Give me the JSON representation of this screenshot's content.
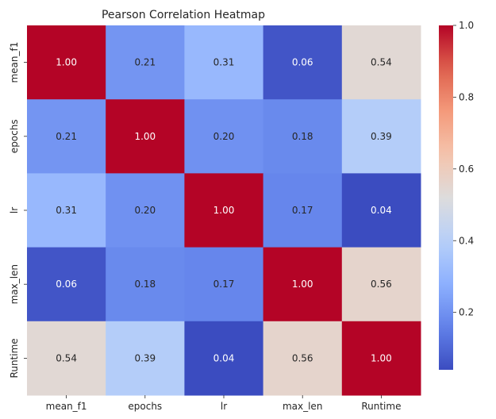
{
  "chart_data": {
    "type": "heatmap",
    "title": "Pearson Correlation Heatmap",
    "xlabel": "",
    "ylabel": "",
    "x_labels": [
      "mean_f1",
      "epochs",
      "lr",
      "max_len",
      "Runtime"
    ],
    "y_labels": [
      "mean_f1",
      "epochs",
      "lr",
      "max_len",
      "Runtime"
    ],
    "values": [
      [
        1.0,
        0.21,
        0.31,
        0.06,
        0.54
      ],
      [
        0.21,
        1.0,
        0.2,
        0.18,
        0.39
      ],
      [
        0.31,
        0.2,
        1.0,
        0.17,
        0.04
      ],
      [
        0.06,
        0.18,
        0.17,
        1.0,
        0.56
      ],
      [
        0.54,
        0.39,
        0.04,
        0.56,
        1.0
      ]
    ],
    "annotation_format": "0.00",
    "colormap": "coolwarm",
    "colorbar": {
      "vmin": 0.04,
      "vmax": 1.0,
      "ticks": [
        0.2,
        0.4,
        0.6,
        0.8,
        1.0
      ],
      "tick_labels": [
        "0.2",
        "0.4",
        "0.6",
        "0.8",
        "1.0"
      ]
    },
    "grid": false
  }
}
